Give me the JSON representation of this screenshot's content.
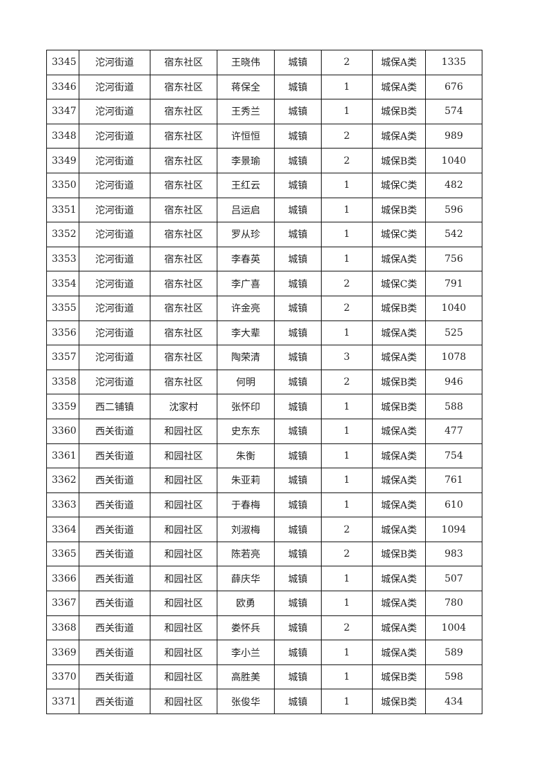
{
  "table": {
    "rows": [
      [
        "3345",
        "沱河街道",
        "宿东社区",
        "王晓伟",
        "城镇",
        "2",
        "城保A类",
        "1335"
      ],
      [
        "3346",
        "沱河街道",
        "宿东社区",
        "蒋保全",
        "城镇",
        "1",
        "城保A类",
        "676"
      ],
      [
        "3347",
        "沱河街道",
        "宿东社区",
        "王秀兰",
        "城镇",
        "1",
        "城保B类",
        "574"
      ],
      [
        "3348",
        "沱河街道",
        "宿东社区",
        "许恒恒",
        "城镇",
        "2",
        "城保A类",
        "989"
      ],
      [
        "3349",
        "沱河街道",
        "宿东社区",
        "李景瑜",
        "城镇",
        "2",
        "城保B类",
        "1040"
      ],
      [
        "3350",
        "沱河街道",
        "宿东社区",
        "王红云",
        "城镇",
        "1",
        "城保C类",
        "482"
      ],
      [
        "3351",
        "沱河街道",
        "宿东社区",
        "吕运启",
        "城镇",
        "1",
        "城保B类",
        "596"
      ],
      [
        "3352",
        "沱河街道",
        "宿东社区",
        "罗从珍",
        "城镇",
        "1",
        "城保C类",
        "542"
      ],
      [
        "3353",
        "沱河街道",
        "宿东社区",
        "李春英",
        "城镇",
        "1",
        "城保A类",
        "756"
      ],
      [
        "3354",
        "沱河街道",
        "宿东社区",
        "李广喜",
        "城镇",
        "2",
        "城保C类",
        "791"
      ],
      [
        "3355",
        "沱河街道",
        "宿东社区",
        "许金亮",
        "城镇",
        "2",
        "城保B类",
        "1040"
      ],
      [
        "3356",
        "沱河街道",
        "宿东社区",
        "李大辈",
        "城镇",
        "1",
        "城保A类",
        "525"
      ],
      [
        "3357",
        "沱河街道",
        "宿东社区",
        "陶荣清",
        "城镇",
        "3",
        "城保A类",
        "1078"
      ],
      [
        "3358",
        "沱河街道",
        "宿东社区",
        "何明",
        "城镇",
        "2",
        "城保B类",
        "946"
      ],
      [
        "3359",
        "西二铺镇",
        "沈家村",
        "张怀印",
        "城镇",
        "1",
        "城保B类",
        "588"
      ],
      [
        "3360",
        "西关街道",
        "和园社区",
        "史东东",
        "城镇",
        "1",
        "城保A类",
        "477"
      ],
      [
        "3361",
        "西关街道",
        "和园社区",
        "朱衡",
        "城镇",
        "1",
        "城保A类",
        "754"
      ],
      [
        "3362",
        "西关街道",
        "和园社区",
        "朱亚莉",
        "城镇",
        "1",
        "城保A类",
        "761"
      ],
      [
        "3363",
        "西关街道",
        "和园社区",
        "于春梅",
        "城镇",
        "1",
        "城保A类",
        "610"
      ],
      [
        "3364",
        "西关街道",
        "和园社区",
        "刘淑梅",
        "城镇",
        "2",
        "城保A类",
        "1094"
      ],
      [
        "3365",
        "西关街道",
        "和园社区",
        "陈若亮",
        "城镇",
        "2",
        "城保B类",
        "983"
      ],
      [
        "3366",
        "西关街道",
        "和园社区",
        "薛庆华",
        "城镇",
        "1",
        "城保A类",
        "507"
      ],
      [
        "3367",
        "西关街道",
        "和园社区",
        "欧勇",
        "城镇",
        "1",
        "城保A类",
        "780"
      ],
      [
        "3368",
        "西关街道",
        "和园社区",
        "娄怀兵",
        "城镇",
        "2",
        "城保A类",
        "1004"
      ],
      [
        "3369",
        "西关街道",
        "和园社区",
        "李小兰",
        "城镇",
        "1",
        "城保A类",
        "589"
      ],
      [
        "3370",
        "西关街道",
        "和园社区",
        "高胜美",
        "城镇",
        "1",
        "城保B类",
        "598"
      ],
      [
        "3371",
        "西关街道",
        "和园社区",
        "张俊华",
        "城镇",
        "1",
        "城保B类",
        "434"
      ]
    ]
  }
}
